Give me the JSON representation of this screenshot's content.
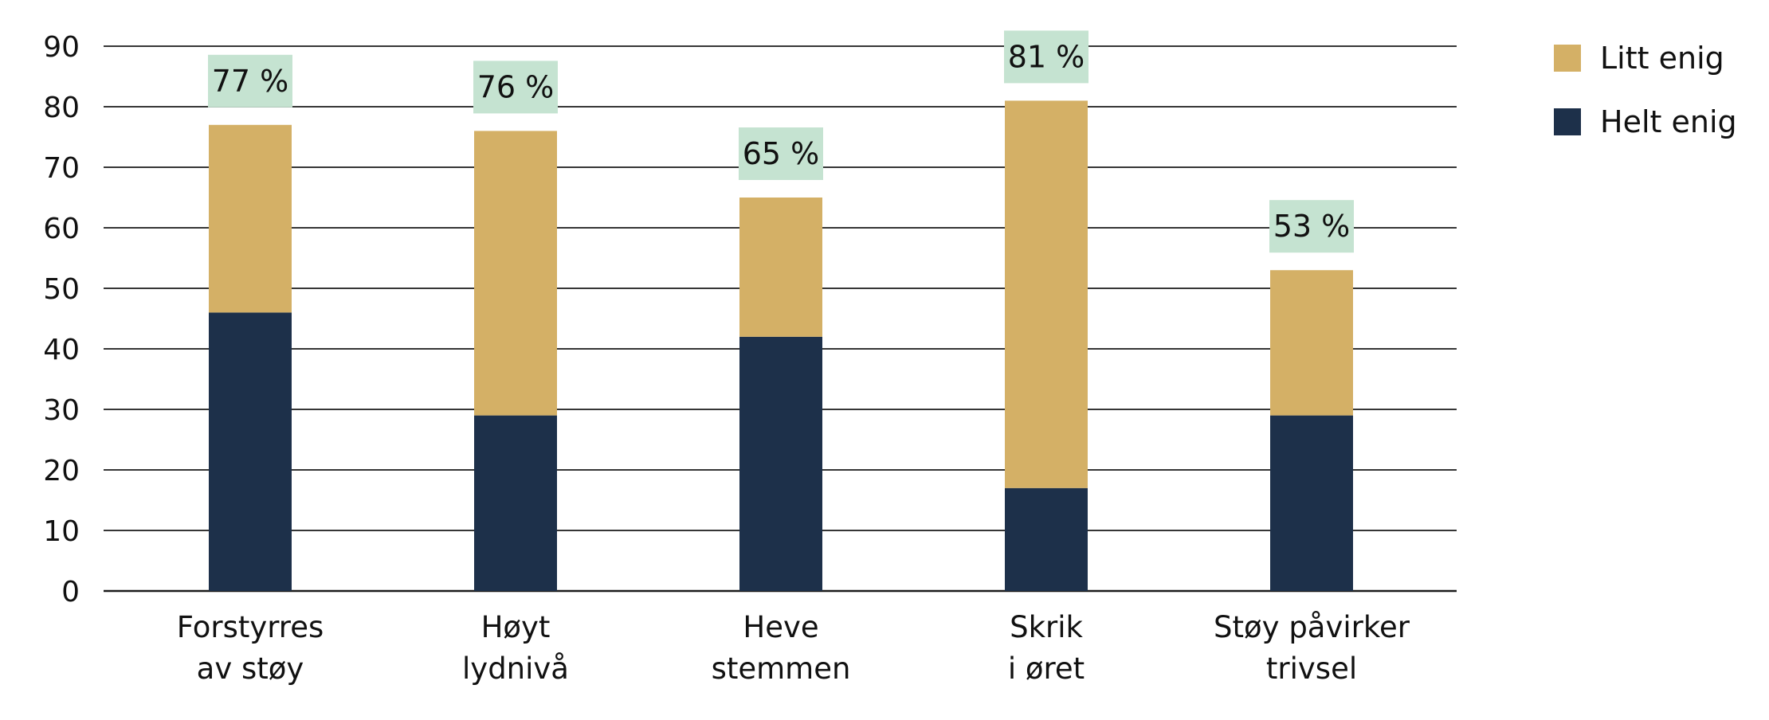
{
  "chart_data": {
    "type": "bar",
    "stacked": true,
    "title": "",
    "xlabel": "",
    "ylabel": "",
    "ylim": [
      0,
      90
    ],
    "yticks": [
      0,
      10,
      20,
      30,
      40,
      50,
      60,
      70,
      80,
      90
    ],
    "grid": true,
    "legend_position": "top-right",
    "categories": [
      [
        "Forstyrres",
        "av støy"
      ],
      [
        "Høyt",
        "lydnivå"
      ],
      [
        "Heve",
        "stemmen"
      ],
      [
        "Skrik",
        "i øret"
      ],
      [
        "Støy påvirker",
        "trivsel"
      ]
    ],
    "series": [
      {
        "name": "Helt enig",
        "color": "#1d304a",
        "values": [
          46,
          29,
          42,
          17,
          29
        ]
      },
      {
        "name": "Litt enig",
        "color": "#d4b066",
        "values": [
          31,
          47,
          23,
          64,
          24
        ]
      }
    ],
    "totals": [
      77,
      76,
      65,
      81,
      53
    ],
    "total_labels": [
      "77 %",
      "76 %",
      "65 %",
      "81 %",
      "53 %"
    ],
    "total_label_bg": "#c5e3d1",
    "legend": [
      {
        "name": "Litt enig",
        "color": "#d4b066"
      },
      {
        "name": "Helt enig",
        "color": "#1d304a"
      }
    ]
  }
}
